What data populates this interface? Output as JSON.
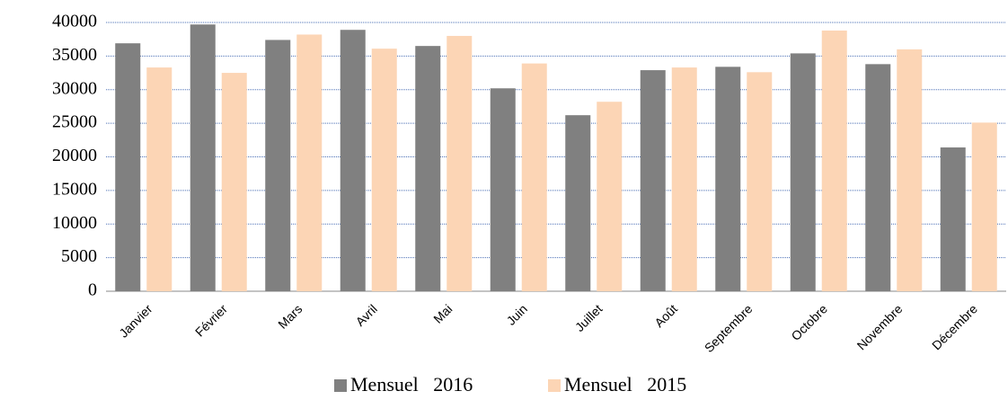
{
  "chart_data": {
    "type": "bar",
    "categories": [
      "Janvier",
      "Février",
      "Mars",
      "Avril",
      "Mai",
      "Juin",
      "Juillet",
      "Août",
      "Septembre",
      "Octobre",
      "Novembre",
      "Décembre"
    ],
    "series": [
      {
        "name": "Mensuel   2016",
        "color": "#808080",
        "values": [
          36900,
          39700,
          37400,
          38900,
          36500,
          30200,
          26200,
          32900,
          33400,
          35400,
          33800,
          21400
        ]
      },
      {
        "name": "Mensuel   2015",
        "color": "#fcd5b5",
        "values": [
          33300,
          32500,
          38200,
          36100,
          38000,
          33900,
          28200,
          33300,
          32600,
          38800,
          36000,
          25100
        ]
      }
    ],
    "ylim": [
      0,
      40000
    ],
    "yticks": [
      0,
      5000,
      10000,
      15000,
      20000,
      25000,
      30000,
      35000,
      40000
    ],
    "grid": true
  }
}
